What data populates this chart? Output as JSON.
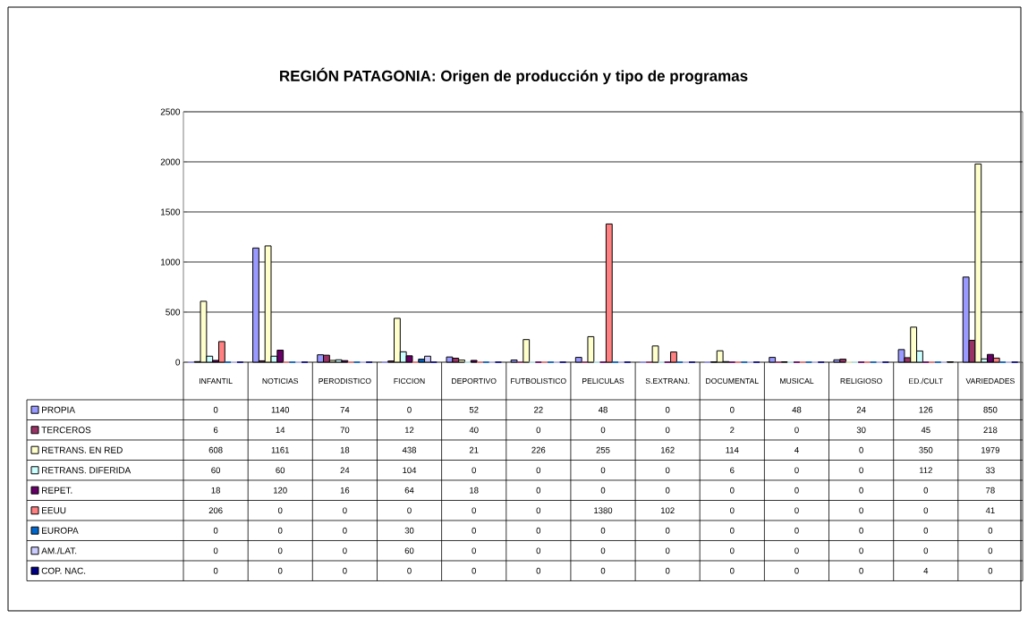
{
  "chart_data": {
    "type": "bar",
    "title": "REGIÓN PATAGONIA: Origen de producción y tipo de programas",
    "categories": [
      "INFANTIL",
      "NOTICIAS",
      "PERODISTICO",
      "FICCION",
      "DEPORTIVO",
      "FUTBOLISTICO",
      "PELICULAS",
      "S.EXTRANJ.",
      "DOCUMENTAL",
      "MUSICAL",
      "RELIGIOSO",
      "ED./CULT",
      "VARIEDADES"
    ],
    "series": [
      {
        "name": "PROPIA",
        "color": "#9999ff",
        "values": [
          0,
          1140,
          74,
          0,
          52,
          22,
          48,
          0,
          0,
          48,
          24,
          126,
          850
        ]
      },
      {
        "name": "TERCEROS",
        "color": "#993366",
        "values": [
          6,
          14,
          70,
          12,
          40,
          0,
          0,
          0,
          2,
          0,
          30,
          45,
          218
        ]
      },
      {
        "name": "RETRANS. EN RED",
        "color": "#ffffcc",
        "values": [
          608,
          1161,
          18,
          438,
          21,
          226,
          255,
          162,
          114,
          4,
          0,
          350,
          1979
        ]
      },
      {
        "name": "RETRANS. DIFERIDA",
        "color": "#ccffff",
        "values": [
          60,
          60,
          24,
          104,
          0,
          0,
          0,
          0,
          6,
          0,
          0,
          112,
          33
        ]
      },
      {
        "name": "REPET.",
        "color": "#660066",
        "values": [
          18,
          120,
          16,
          64,
          18,
          0,
          0,
          0,
          0,
          0,
          0,
          0,
          78
        ]
      },
      {
        "name": "EEUU",
        "color": "#ff8080",
        "values": [
          206,
          0,
          0,
          0,
          0,
          0,
          1380,
          102,
          0,
          0,
          0,
          0,
          41
        ]
      },
      {
        "name": "EUROPA",
        "color": "#0066cc",
        "values": [
          0,
          0,
          0,
          30,
          0,
          0,
          0,
          0,
          0,
          0,
          0,
          0,
          0
        ]
      },
      {
        "name": "AM./LAT.",
        "color": "#ccccff",
        "values": [
          0,
          0,
          0,
          60,
          0,
          0,
          0,
          0,
          0,
          0,
          0,
          0,
          0
        ]
      },
      {
        "name": "COP. NAC.",
        "color": "#000080",
        "values": [
          0,
          0,
          0,
          0,
          0,
          0,
          0,
          0,
          0,
          0,
          0,
          4,
          0
        ]
      }
    ],
    "ylim": [
      0,
      2500
    ],
    "yticks": [
      0,
      500,
      1000,
      1500,
      2000,
      2500
    ],
    "grid": "y",
    "legend": "bottom",
    "data_labels": true
  }
}
